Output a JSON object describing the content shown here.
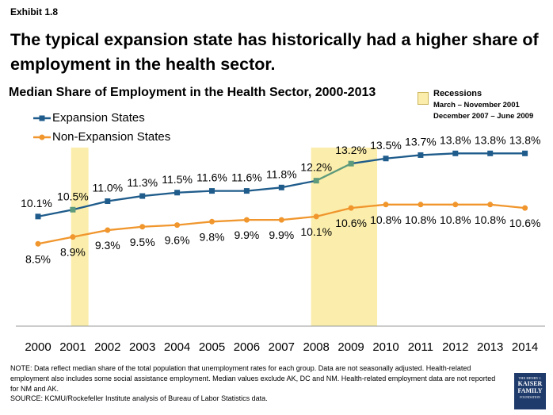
{
  "exhibit_label": "Exhibit 1.8",
  "headline": "The typical expansion state has historically had a higher share of employment in the health sector.",
  "recessions_legend": {
    "title": "Recessions",
    "line1": "March – November 2001",
    "line2": "December 2007 – June 2009"
  },
  "note": "NOTE: Data reflect median share of the total population that unemployment rates for each group. Data are not seasonally adjusted. Health-related employment also includes some social assistance employment. Median values exclude AK, DC and NM. Health-related employment data are not reported for NM and AK.",
  "source": "SOURCE: KCMU/Rockefeller Institute analysis of Bureau of Labor Statistics data.",
  "logo": {
    "small": "THE HENRY J.",
    "line1": "KAISER",
    "line2": "FAMILY",
    "small2": "FOUNDATION"
  },
  "colors": {
    "expansion": "#1f5c8b",
    "expansion_recession": "#5e9a7c",
    "non_expansion": "#f0962d",
    "recession_fill": "#fbeeac"
  },
  "chart_data": {
    "type": "line",
    "title": "Median Share of Employment in the Health Sector, 2000-2013",
    "x": [
      "2000",
      "2001",
      "2002",
      "2003",
      "2004",
      "2005",
      "2006",
      "2007",
      "2008",
      "2009",
      "2010",
      "2011",
      "2012",
      "2013",
      "2014"
    ],
    "series": [
      {
        "name": "Expansion States",
        "values": [
          10.1,
          10.5,
          11.0,
          11.3,
          11.5,
          11.6,
          11.6,
          11.8,
          12.2,
          13.2,
          13.5,
          13.7,
          13.8,
          13.8,
          13.8
        ],
        "labels": [
          "10.1%",
          "10.5%",
          "11.0%",
          "11.3%",
          "11.5%",
          "11.6%",
          "11.6%",
          "11.8%",
          "12.2%",
          "13.2%",
          "13.5%",
          "13.7%",
          "13.8%",
          "13.8%",
          "13.8%"
        ]
      },
      {
        "name": "Non-Expansion States",
        "values": [
          8.5,
          8.9,
          9.3,
          9.5,
          9.6,
          9.8,
          9.9,
          9.9,
          10.1,
          10.6,
          10.8,
          10.8,
          10.8,
          10.8,
          10.6
        ],
        "labels": [
          "8.5%",
          "8.9%",
          "9.3%",
          "9.5%",
          "9.6%",
          "9.8%",
          "9.9%",
          "9.9%",
          "10.1%",
          "10.6%",
          "10.8%",
          "10.8%",
          "10.8%",
          "10.8%",
          "10.6%"
        ]
      }
    ],
    "recessions": [
      {
        "start": 2000.95,
        "end": 2001.45
      },
      {
        "start": 2007.85,
        "end": 2009.75
      }
    ],
    "ylim": [
      -5,
      16
    ],
    "xlabel": "",
    "ylabel": "",
    "grid": false,
    "legend": "top-left"
  }
}
